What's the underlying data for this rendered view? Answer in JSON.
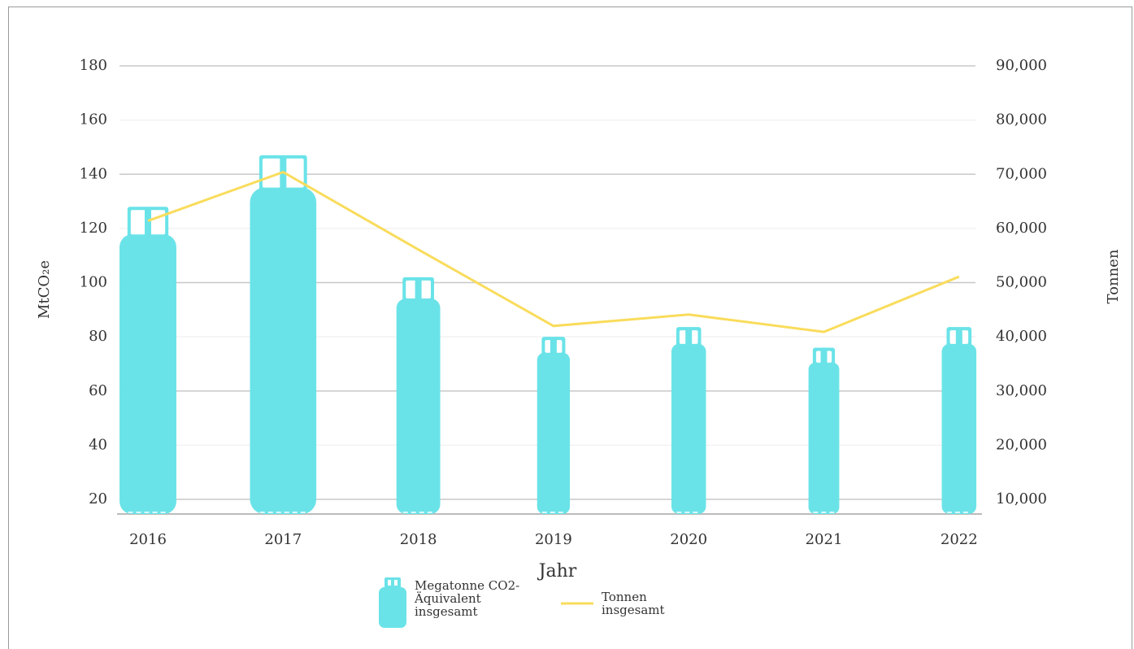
{
  "chart_data": {
    "type": "bar_line",
    "categories": [
      "2016",
      "2017",
      "2018",
      "2019",
      "2020",
      "2021",
      "2022"
    ],
    "series": [
      {
        "name": "Megatonne CO2-Äquivalent insgesamt",
        "color": "#6ae3e8",
        "type": "bar",
        "values": [
          128,
          147,
          102,
          80,
          83.6,
          76,
          83.6
        ]
      },
      {
        "name": "Tonnen insgesamt",
        "color": "#f9dc5c",
        "type": "line",
        "axis": "y2",
        "values": [
          61400,
          70400,
          56100,
          42000,
          44100,
          40900,
          51100
        ]
      }
    ],
    "xlabel": "Jahr",
    "ylabel": "MtCO₂e",
    "y2label": "Tonnen",
    "ylim": [
      14.6,
      180
    ],
    "yticks": [
      20,
      40,
      60,
      80,
      100,
      120,
      140,
      160,
      180
    ],
    "y2lim": [
      7300,
      90000
    ],
    "y2ticks": [
      {
        "value": 10000,
        "label": "10,000"
      },
      {
        "value": 20000,
        "label": "20,000"
      },
      {
        "value": 30000,
        "label": "30,000"
      },
      {
        "value": 40000,
        "label": "40,000"
      },
      {
        "value": 50000,
        "label": "50,000"
      },
      {
        "value": 60000,
        "label": "60,000"
      },
      {
        "value": 70000,
        "label": "70,000"
      },
      {
        "value": 80000,
        "label": "80,000"
      },
      {
        "value": 90000,
        "label": "90,000"
      }
    ],
    "grid": true
  }
}
